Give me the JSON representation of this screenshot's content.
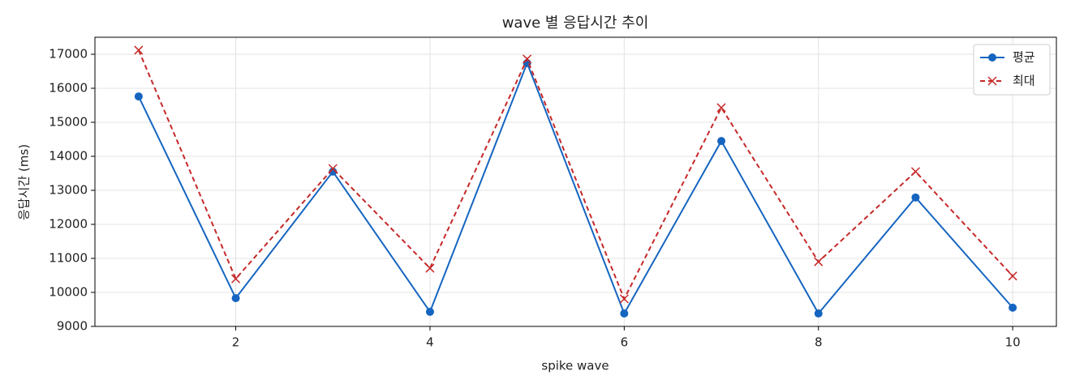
{
  "chart_data": {
    "type": "line",
    "title": "wave 별 응답시간 추이",
    "x_label": "spike wave",
    "y_label": "응답시간 (ms)",
    "x": [
      1,
      2,
      3,
      4,
      5,
      6,
      7,
      8,
      9,
      10
    ],
    "series": [
      {
        "name": "평균",
        "color": "#1565c0",
        "marker": "o",
        "dashed": false,
        "values": [
          15760,
          9830,
          13550,
          9430,
          16740,
          9380,
          14450,
          9380,
          12790,
          9550
        ]
      },
      {
        "name": "최대",
        "color": "#c62828",
        "marker": "x",
        "dashed": true,
        "values": [
          17120,
          10400,
          13640,
          10710,
          16860,
          9810,
          15430,
          10900,
          13550,
          10480
        ]
      }
    ],
    "xlim": [
      0.55,
      10.45
    ],
    "xticks": [
      2,
      4,
      6,
      8,
      10
    ],
    "ylim": [
      9000,
      17500
    ],
    "yticks": [
      9000,
      10000,
      11000,
      12000,
      13000,
      14000,
      15000,
      16000,
      17000
    ],
    "grid": true,
    "legend": "upper right"
  }
}
